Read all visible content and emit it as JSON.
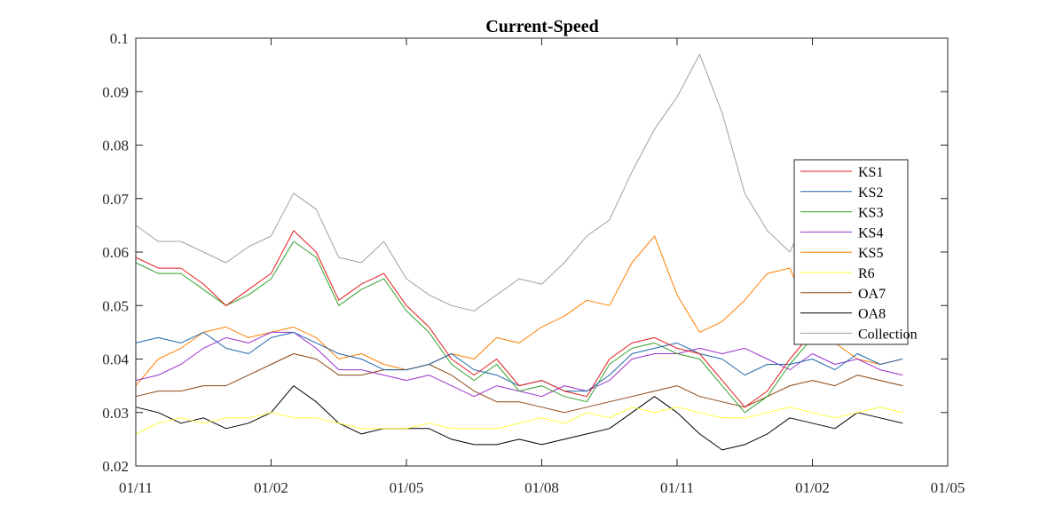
{
  "chart_data": {
    "type": "line",
    "title": "Current-Speed",
    "xlabel": "",
    "ylabel": "",
    "ylim": [
      0.02,
      0.1
    ],
    "yticks": [
      0.02,
      0.03,
      0.04,
      0.05,
      0.06,
      0.07,
      0.08,
      0.09,
      0.1
    ],
    "ytick_labels": [
      "0.02",
      "0.03",
      "0.04",
      "0.05",
      "0.06",
      "0.07",
      "0.08",
      "0.09",
      "0.1"
    ],
    "xlim": [
      0,
      18
    ],
    "xticks": [
      0,
      3,
      6,
      9,
      12,
      15,
      18
    ],
    "xtick_labels": [
      "01/11",
      "01/02",
      "01/05",
      "01/08",
      "01/11",
      "01/02",
      "01/05"
    ],
    "grid": false,
    "legend_position": "right",
    "x": [
      0,
      0.5,
      1,
      1.5,
      2,
      2.5,
      3,
      3.5,
      4,
      4.5,
      5,
      5.5,
      6,
      6.5,
      7,
      7.5,
      8,
      8.5,
      9,
      9.5,
      10,
      10.5,
      11,
      11.5,
      12,
      12.5,
      13,
      13.5,
      14,
      14.5,
      15,
      15.5,
      16,
      16.5,
      17
    ],
    "series": [
      {
        "name": "KS1",
        "color": "#e41a1c",
        "values": [
          0.059,
          0.057,
          0.057,
          0.054,
          0.05,
          0.053,
          0.056,
          0.064,
          0.06,
          0.051,
          0.054,
          0.056,
          0.05,
          0.046,
          0.04,
          0.037,
          0.04,
          0.035,
          0.036,
          0.034,
          0.033,
          0.04,
          0.043,
          0.044,
          0.042,
          0.041,
          0.036,
          0.031,
          0.034,
          0.04,
          0.045,
          0.049,
          0.05,
          0.052,
          0.049
        ]
      },
      {
        "name": "KS2",
        "color": "#2166ac",
        "values": [
          0.043,
          0.044,
          0.043,
          0.045,
          0.042,
          0.041,
          0.044,
          0.045,
          0.043,
          0.041,
          0.04,
          0.038,
          0.038,
          0.039,
          0.041,
          0.038,
          0.037,
          0.035,
          0.036,
          0.034,
          0.034,
          0.037,
          0.041,
          0.042,
          0.043,
          0.041,
          0.04,
          0.037,
          0.039,
          0.039,
          0.04,
          0.038,
          0.041,
          0.039,
          0.04
        ]
      },
      {
        "name": "KS3",
        "color": "#33a02c",
        "values": [
          0.058,
          0.056,
          0.056,
          0.053,
          0.05,
          0.052,
          0.055,
          0.062,
          0.059,
          0.05,
          0.053,
          0.055,
          0.049,
          0.045,
          0.039,
          0.036,
          0.039,
          0.034,
          0.035,
          0.033,
          0.032,
          0.039,
          0.042,
          0.043,
          0.041,
          0.04,
          0.035,
          0.03,
          0.033,
          0.039,
          0.044,
          0.048,
          0.049,
          0.051,
          0.048
        ]
      },
      {
        "name": "KS4",
        "color": "#9932cc",
        "values": [
          0.036,
          0.037,
          0.039,
          0.042,
          0.044,
          0.043,
          0.045,
          0.045,
          0.042,
          0.038,
          0.038,
          0.037,
          0.036,
          0.037,
          0.035,
          0.033,
          0.035,
          0.034,
          0.033,
          0.035,
          0.034,
          0.036,
          0.04,
          0.041,
          0.041,
          0.042,
          0.041,
          0.042,
          0.04,
          0.038,
          0.041,
          0.039,
          0.04,
          0.038,
          0.037
        ]
      },
      {
        "name": "KS5",
        "color": "#ff7f00",
        "values": [
          0.035,
          0.04,
          0.042,
          0.045,
          0.046,
          0.044,
          0.045,
          0.046,
          0.044,
          0.04,
          0.041,
          0.039,
          0.038,
          0.039,
          0.041,
          0.04,
          0.044,
          0.043,
          0.046,
          0.048,
          0.051,
          0.05,
          0.058,
          0.063,
          0.052,
          0.045,
          0.047,
          0.051,
          0.056,
          0.057,
          0.047,
          0.043,
          0.04,
          0.039,
          0.04
        ]
      },
      {
        "name": "R6",
        "color": "#ffff33",
        "values": [
          0.026,
          0.028,
          0.029,
          0.028,
          0.029,
          0.029,
          0.03,
          0.029,
          0.029,
          0.028,
          0.027,
          0.027,
          0.027,
          0.028,
          0.027,
          0.027,
          0.027,
          0.028,
          0.029,
          0.028,
          0.03,
          0.029,
          0.031,
          0.03,
          0.031,
          0.03,
          0.029,
          0.029,
          0.03,
          0.031,
          0.03,
          0.029,
          0.03,
          0.031,
          0.03
        ]
      },
      {
        "name": "OA7",
        "color": "#8b4513",
        "values": [
          0.033,
          0.034,
          0.034,
          0.035,
          0.035,
          0.037,
          0.039,
          0.041,
          0.04,
          0.037,
          0.037,
          0.038,
          0.038,
          0.039,
          0.037,
          0.034,
          0.032,
          0.032,
          0.031,
          0.03,
          0.031,
          0.032,
          0.033,
          0.034,
          0.035,
          0.033,
          0.032,
          0.031,
          0.033,
          0.035,
          0.036,
          0.035,
          0.037,
          0.036,
          0.035
        ]
      },
      {
        "name": "OA8",
        "color": "#000000",
        "values": [
          0.031,
          0.03,
          0.028,
          0.029,
          0.027,
          0.028,
          0.03,
          0.035,
          0.032,
          0.028,
          0.026,
          0.027,
          0.027,
          0.027,
          0.025,
          0.024,
          0.024,
          0.025,
          0.024,
          0.025,
          0.026,
          0.027,
          0.03,
          0.033,
          0.03,
          0.026,
          0.023,
          0.024,
          0.026,
          0.029,
          0.028,
          0.027,
          0.03,
          0.029,
          0.028
        ]
      },
      {
        "name": "Collection",
        "color": "#a0a0a0",
        "values": [
          0.065,
          0.062,
          0.062,
          0.06,
          0.058,
          0.061,
          0.063,
          0.071,
          0.068,
          0.059,
          0.058,
          0.062,
          0.055,
          0.052,
          0.05,
          0.049,
          0.052,
          0.055,
          0.054,
          0.058,
          0.063,
          0.066,
          0.075,
          0.083,
          0.089,
          0.097,
          0.086,
          0.071,
          0.064,
          0.06,
          0.069,
          0.072,
          0.074,
          0.075,
          0.073
        ]
      }
    ]
  }
}
